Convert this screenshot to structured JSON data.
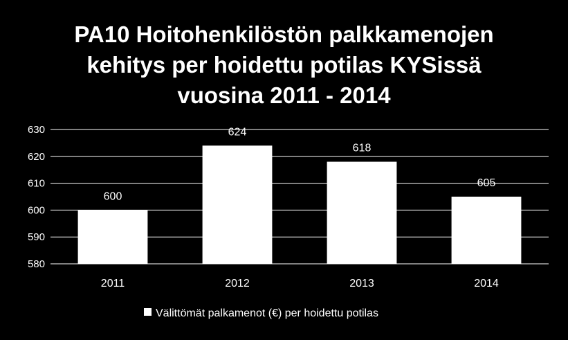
{
  "title_lines": [
    "PA10 Hoitohenkilöstön palkkamenojen",
    "kehitys per hoidettu potilas KYSissä",
    "vuosina 2011 - 2014"
  ],
  "chart_data": {
    "type": "bar",
    "categories": [
      "2011",
      "2012",
      "2013",
      "2014"
    ],
    "series": [
      {
        "name": "Välittömät palkamenot (€)  per hoidettu potilas",
        "values": [
          600,
          624,
          618,
          605
        ],
        "color": "#ffffff"
      }
    ],
    "data_labels": [
      "600",
      "624",
      "618",
      "605"
    ],
    "ylim": [
      580,
      630
    ],
    "yticks": [
      580,
      590,
      600,
      610,
      620,
      630
    ],
    "grid": true,
    "legend_position": "bottom",
    "background": "#000000",
    "text_color": "#ffffff"
  }
}
